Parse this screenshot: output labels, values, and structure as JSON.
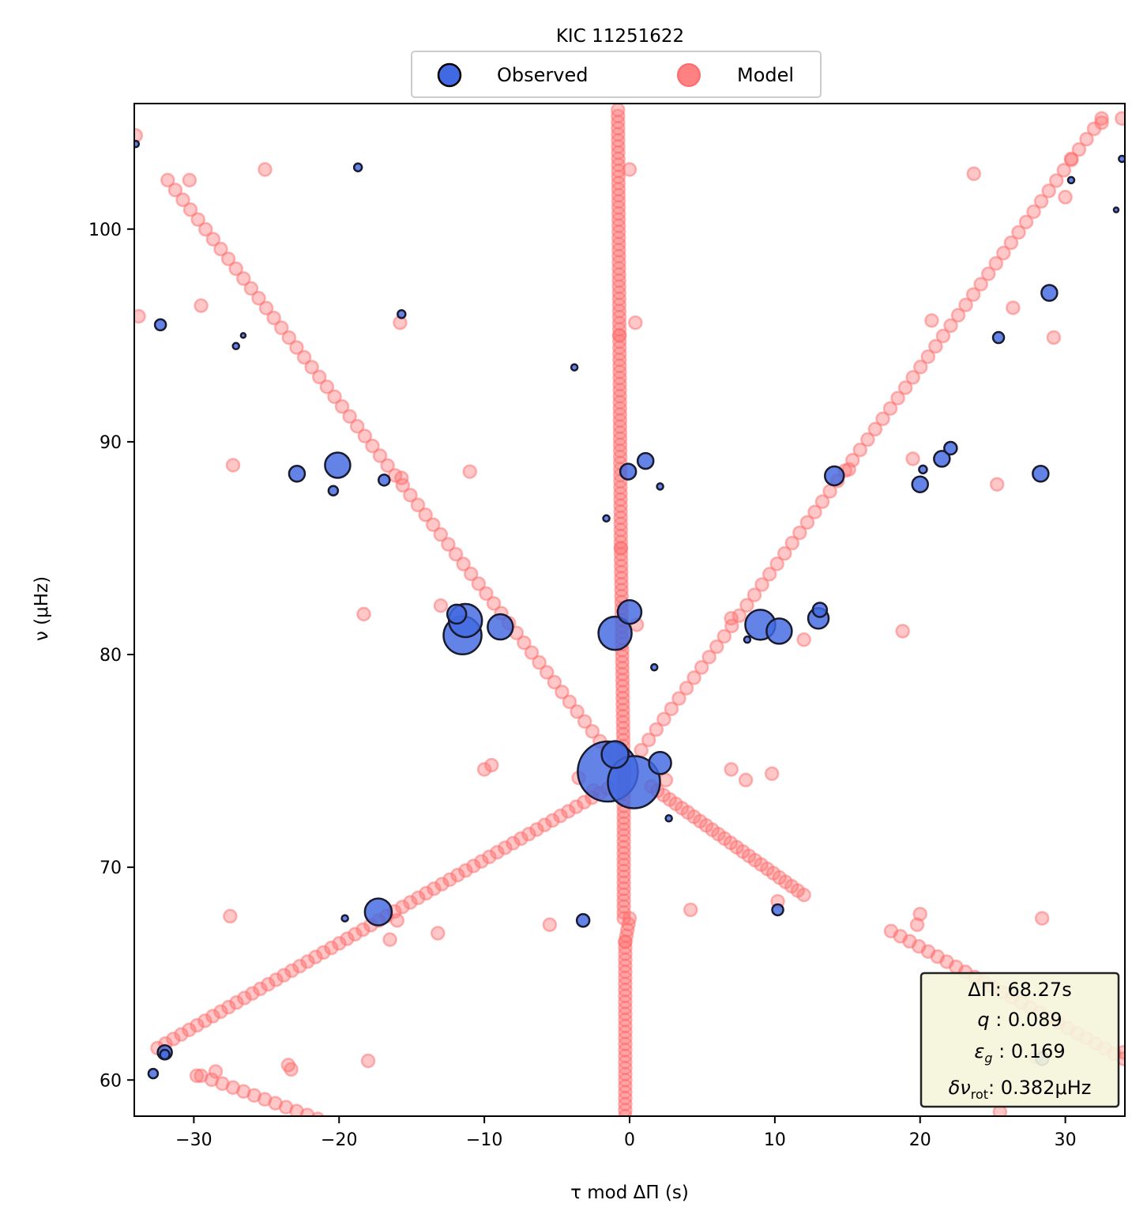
{
  "chart_data": {
    "type": "scatter",
    "title": "KIC 11251622",
    "xlabel": "τ mod ΔΠ (s)",
    "ylabel": "ν (μHz)",
    "xlim": [
      -34.1,
      34.1
    ],
    "ylim": [
      58.3,
      105.9
    ],
    "xticks": [
      -30,
      -20,
      -10,
      0,
      10,
      20,
      30
    ],
    "xtick_labels": [
      "−30",
      "−20",
      "−10",
      "0",
      "10",
      "20",
      "30"
    ],
    "yticks": [
      60,
      70,
      80,
      90,
      100
    ],
    "ytick_labels": [
      "60",
      "70",
      "80",
      "90",
      "100"
    ],
    "grid": false,
    "legend": {
      "placement": "top-center",
      "entries": [
        {
          "label": "Observed",
          "color": "#4169e1"
        },
        {
          "label": "Model",
          "color": "#ff6b6b"
        }
      ]
    },
    "annotation": {
      "placement": "bottom-right",
      "lines": [
        {
          "symbol": "ΔΠ",
          "value": ": 68.27s"
        },
        {
          "symbol": "q",
          "value": " :  0.089"
        },
        {
          "symbol": "ε",
          "sub": "g",
          "value": " : 0.169"
        },
        {
          "symbol": "δν",
          "sub": "rot",
          "value": ": 0.382μHz"
        }
      ]
    },
    "colors": {
      "observed_fill": "#4169e1",
      "observed_edge": "#1a1a2e",
      "model": "#ff6b6b"
    },
    "series": [
      {
        "name": "Model",
        "branches": [
          {
            "x0": -0.3,
            "x1": -0.3,
            "y0": 58.3,
            "y1": 66.5,
            "n": 30
          },
          {
            "x0": -0.3,
            "x1": 0.0,
            "y0": 66.5,
            "y1": 67.6,
            "n": 5
          },
          {
            "x0": -0.4,
            "x1": -0.4,
            "y0": 67.6,
            "y1": 74.0,
            "n": 24
          },
          {
            "x0": -0.4,
            "x1": -0.6,
            "y0": 74.0,
            "y1": 85.0,
            "n": 40
          },
          {
            "x0": -0.6,
            "x1": -0.7,
            "y0": 85.0,
            "y1": 95.0,
            "n": 36
          },
          {
            "x0": -0.7,
            "x1": -0.8,
            "y0": 95.0,
            "y1": 105.6,
            "n": 38
          },
          {
            "x0": -32.5,
            "x1": -1.5,
            "y0": 61.5,
            "y1": 73.7,
            "n": 58
          },
          {
            "x0": 0.8,
            "x1": 32.5,
            "y0": 75.5,
            "y1": 105.2,
            "n": 62
          },
          {
            "x0": -31.8,
            "x1": -1.0,
            "y0": 102.3,
            "y1": 75.0,
            "n": 60
          },
          {
            "x0": 1.5,
            "x1": 12.0,
            "y0": 73.8,
            "y1": 68.7,
            "n": 26
          },
          {
            "x0": -29.5,
            "x1": -20.0,
            "y0": 60.2,
            "y1": 57.8,
            "n": 14
          },
          {
            "x0": 18.0,
            "x1": 34.0,
            "y0": 67.0,
            "y1": 61.0,
            "n": 26
          }
        ],
        "points": [
          [
            -34.0,
            104.4
          ],
          [
            -30.3,
            102.3
          ],
          [
            -25.1,
            102.8
          ],
          [
            -29.5,
            96.4
          ],
          [
            -33.8,
            95.9
          ],
          [
            -15.8,
            95.6
          ],
          [
            -27.3,
            88.9
          ],
          [
            -15.7,
            88.3
          ],
          [
            -11.0,
            88.6
          ],
          [
            -18.3,
            81.9
          ],
          [
            -13.0,
            82.3
          ],
          [
            -10.0,
            74.6
          ],
          [
            -9.5,
            74.8
          ],
          [
            -3.5,
            74.2
          ],
          [
            -2.5,
            73.6
          ],
          [
            4.2,
            68.0
          ],
          [
            -5.5,
            67.3
          ],
          [
            -16.0,
            67.5
          ],
          [
            -16.5,
            66.6
          ],
          [
            -13.2,
            66.9
          ],
          [
            -27.5,
            67.7
          ],
          [
            -18.0,
            60.9
          ],
          [
            -23.5,
            60.7
          ],
          [
            -23.3,
            60.5
          ],
          [
            -29.8,
            60.2
          ],
          [
            -28.5,
            60.4
          ],
          [
            0.5,
            81.4
          ],
          [
            0.4,
            95.6
          ],
          [
            0.0,
            102.8
          ],
          [
            2.5,
            74.1
          ],
          [
            7.0,
            81.7
          ],
          [
            7.0,
            74.6
          ],
          [
            8.0,
            74.1
          ],
          [
            9.8,
            74.4
          ],
          [
            10.2,
            68.4
          ],
          [
            12.0,
            80.7
          ],
          [
            18.8,
            81.1
          ],
          [
            19.5,
            89.2
          ],
          [
            20.0,
            67.8
          ],
          [
            19.8,
            67.3
          ],
          [
            20.8,
            95.7
          ],
          [
            23.7,
            102.6
          ],
          [
            25.3,
            88.0
          ],
          [
            28.4,
            67.6
          ],
          [
            29.2,
            94.9
          ],
          [
            30.4,
            103.3
          ],
          [
            32.5,
            105.0
          ],
          [
            33.9,
            105.2
          ],
          [
            34.0,
            61.3
          ],
          [
            28.0,
            61.1
          ],
          [
            25.5,
            58.5
          ],
          [
            23.8,
            57.9
          ],
          [
            26.4,
            96.3
          ],
          [
            15.1,
            88.7
          ],
          [
            30.0,
            101.5
          ]
        ]
      },
      {
        "name": "Observed",
        "points": [
          [
            -1.5,
            74.5,
            38
          ],
          [
            0.3,
            74.0,
            33
          ],
          [
            -1.0,
            75.3,
            17
          ],
          [
            2.1,
            74.9,
            14
          ],
          [
            -11.5,
            80.9,
            24
          ],
          [
            -11.3,
            81.6,
            21
          ],
          [
            -11.9,
            81.9,
            12
          ],
          [
            -8.9,
            81.3,
            16
          ],
          [
            -1.0,
            81.0,
            21
          ],
          [
            0.0,
            82.0,
            15
          ],
          [
            9.0,
            81.4,
            19
          ],
          [
            10.3,
            81.1,
            16
          ],
          [
            13.1,
            82.1,
            9
          ],
          [
            13.0,
            81.7,
            13
          ],
          [
            8.1,
            80.7,
            4
          ],
          [
            1.7,
            79.4,
            4
          ],
          [
            -20.1,
            88.9,
            16
          ],
          [
            -22.9,
            88.5,
            10
          ],
          [
            -16.9,
            88.2,
            7
          ],
          [
            -20.4,
            87.7,
            6
          ],
          [
            -0.1,
            88.6,
            10
          ],
          [
            1.1,
            89.1,
            10
          ],
          [
            2.1,
            87.9,
            4
          ],
          [
            -1.6,
            86.4,
            4
          ],
          [
            14.1,
            88.4,
            12
          ],
          [
            20.0,
            88.0,
            10
          ],
          [
            20.2,
            88.7,
            5
          ],
          [
            21.5,
            89.2,
            10
          ],
          [
            22.1,
            89.7,
            8
          ],
          [
            28.3,
            88.5,
            10
          ],
          [
            -17.3,
            67.9,
            17
          ],
          [
            -19.6,
            67.6,
            4
          ],
          [
            -3.2,
            67.5,
            8
          ],
          [
            10.2,
            68.0,
            7
          ],
          [
            2.7,
            72.3,
            4
          ],
          [
            -3.8,
            93.5,
            4
          ],
          [
            -32.3,
            95.5,
            7
          ],
          [
            -27.1,
            94.5,
            4
          ],
          [
            -26.6,
            95.0,
            3
          ],
          [
            -15.7,
            96.0,
            5
          ],
          [
            25.4,
            94.9,
            7
          ],
          [
            28.9,
            97.0,
            10
          ],
          [
            -18.7,
            102.9,
            5
          ],
          [
            30.4,
            102.3,
            4
          ],
          [
            33.9,
            103.3,
            4
          ],
          [
            -34.0,
            104.0,
            4
          ],
          [
            33.5,
            100.9,
            3
          ],
          [
            -32.0,
            61.3,
            9
          ],
          [
            -32.0,
            61.2,
            6
          ],
          [
            -32.8,
            60.3,
            6
          ],
          [
            28.4,
            61.0,
            8
          ]
        ]
      }
    ]
  }
}
